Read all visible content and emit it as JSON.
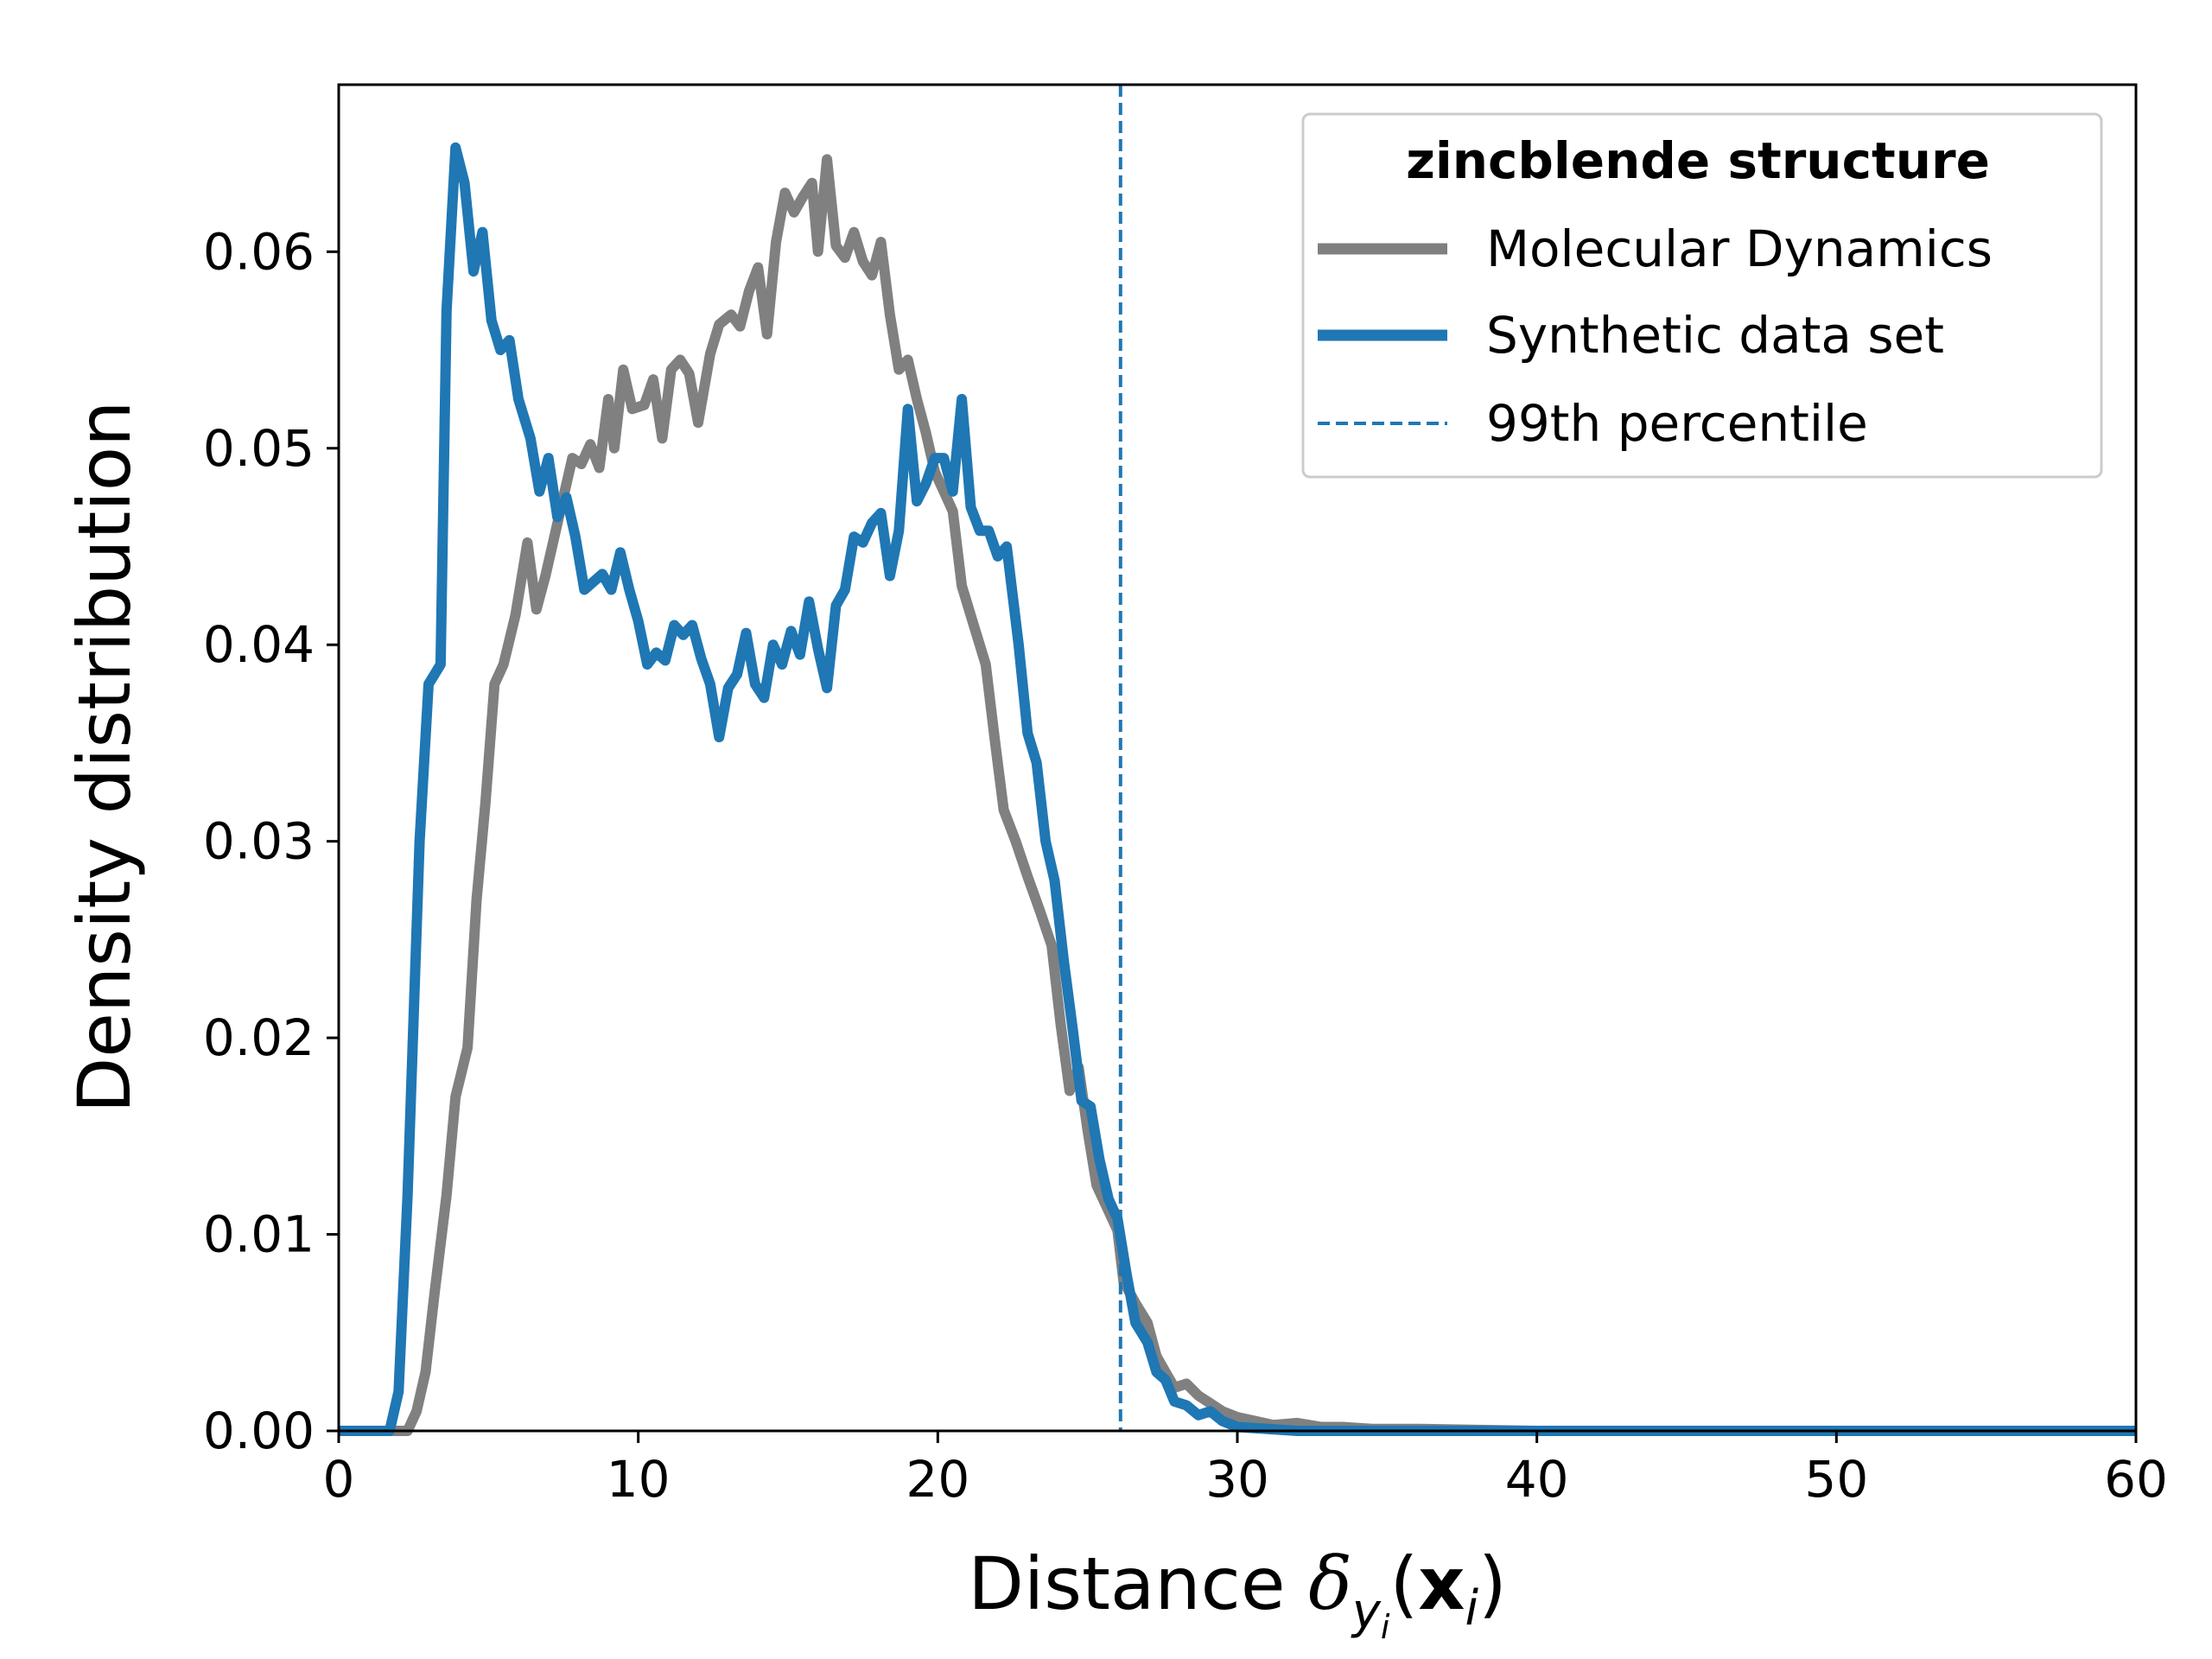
{
  "chart_data": {
    "type": "line",
    "title": "",
    "xlabel": "Distance",
    "xlabel_math": "δ",
    "xlabel_sub": "y",
    "xlabel_subsub": "i",
    "xlabel_arg_open": "(",
    "xlabel_arg_bold": "x",
    "xlabel_arg_sub": "i",
    "xlabel_arg_close": ")",
    "ylabel": "Density distribution",
    "xlim": [
      0,
      60
    ],
    "ylim": [
      0,
      0.0685
    ],
    "xticks": [
      0,
      10,
      20,
      30,
      40,
      50,
      60
    ],
    "yticks": [
      0.0,
      0.01,
      0.02,
      0.03,
      0.04,
      0.05,
      0.06
    ],
    "xtick_labels": [
      "0",
      "10",
      "20",
      "30",
      "40",
      "50",
      "60"
    ],
    "ytick_labels": [
      "0.00",
      "0.01",
      "0.02",
      "0.03",
      "0.04",
      "0.05",
      "0.06"
    ],
    "grid": false,
    "legend": {
      "placement": "top-right",
      "title": "zincblende structure",
      "entries": [
        "Molecular Dynamics",
        "Synthetic data set",
        "99th percentile"
      ]
    },
    "vline": {
      "x": 26.1,
      "name": "99th percentile",
      "color": "#1f77b4",
      "style": "dashed"
    },
    "series": [
      {
        "name": "Molecular Dynamics",
        "color": "#808080",
        "points": [
          [
            0,
            0
          ],
          [
            2.3,
            0
          ],
          [
            2.6,
            0.001
          ],
          [
            2.9,
            0.003
          ],
          [
            3.2,
            0.007
          ],
          [
            3.6,
            0.012
          ],
          [
            3.9,
            0.017
          ],
          [
            4.3,
            0.0195
          ],
          [
            4.6,
            0.027
          ],
          [
            4.9,
            0.032
          ],
          [
            5.2,
            0.038
          ],
          [
            5.5,
            0.039
          ],
          [
            5.9,
            0.0415
          ],
          [
            6.3,
            0.0452
          ],
          [
            6.6,
            0.0418
          ],
          [
            6.9,
            0.0435
          ],
          [
            7.2,
            0.0455
          ],
          [
            7.5,
            0.0475
          ],
          [
            7.8,
            0.0495
          ],
          [
            8.1,
            0.0492
          ],
          [
            8.4,
            0.0502
          ],
          [
            8.7,
            0.049
          ],
          [
            9.0,
            0.0525
          ],
          [
            9.2,
            0.05
          ],
          [
            9.5,
            0.054
          ],
          [
            9.8,
            0.052
          ],
          [
            10.2,
            0.0522
          ],
          [
            10.5,
            0.0535
          ],
          [
            10.8,
            0.0505
          ],
          [
            11.1,
            0.054
          ],
          [
            11.4,
            0.0545
          ],
          [
            11.7,
            0.0538
          ],
          [
            12.0,
            0.0513
          ],
          [
            12.4,
            0.0548
          ],
          [
            12.7,
            0.0563
          ],
          [
            13.1,
            0.0568
          ],
          [
            13.4,
            0.0562
          ],
          [
            13.7,
            0.058
          ],
          [
            14.0,
            0.0592
          ],
          [
            14.3,
            0.0558
          ],
          [
            14.6,
            0.0605
          ],
          [
            14.9,
            0.063
          ],
          [
            15.2,
            0.062
          ],
          [
            15.5,
            0.0628
          ],
          [
            15.8,
            0.0635
          ],
          [
            16.0,
            0.06
          ],
          [
            16.3,
            0.0647
          ],
          [
            16.6,
            0.0603
          ],
          [
            16.9,
            0.0597
          ],
          [
            17.2,
            0.061
          ],
          [
            17.5,
            0.0595
          ],
          [
            17.8,
            0.0588
          ],
          [
            18.1,
            0.0605
          ],
          [
            18.4,
            0.0568
          ],
          [
            18.7,
            0.054
          ],
          [
            19.0,
            0.0545
          ],
          [
            19.3,
            0.0525
          ],
          [
            19.6,
            0.0508
          ],
          [
            19.9,
            0.0488
          ],
          [
            20.2,
            0.0478
          ],
          [
            20.5,
            0.0468
          ],
          [
            20.8,
            0.043
          ],
          [
            21.2,
            0.041
          ],
          [
            21.6,
            0.039
          ],
          [
            21.9,
            0.0352
          ],
          [
            22.2,
            0.0316
          ],
          [
            22.6,
            0.03
          ],
          [
            23.0,
            0.0282
          ],
          [
            23.4,
            0.0265
          ],
          [
            23.8,
            0.0247
          ],
          [
            24.1,
            0.0207
          ],
          [
            24.4,
            0.0173
          ],
          [
            24.7,
            0.0185
          ],
          [
            25.0,
            0.0153
          ],
          [
            25.3,
            0.0125
          ],
          [
            25.7,
            0.0112
          ],
          [
            26.0,
            0.0102
          ],
          [
            26.2,
            0.0076
          ],
          [
            26.6,
            0.0065
          ],
          [
            27.0,
            0.0055
          ],
          [
            27.3,
            0.0038
          ],
          [
            27.6,
            0.003
          ],
          [
            27.9,
            0.0022
          ],
          [
            28.3,
            0.0024
          ],
          [
            28.7,
            0.0018
          ],
          [
            29.1,
            0.0014
          ],
          [
            29.5,
            0.001
          ],
          [
            30.0,
            0.0007
          ],
          [
            30.6,
            0.0005
          ],
          [
            31.2,
            0.0003
          ],
          [
            32.0,
            0.0004
          ],
          [
            32.8,
            0.0002
          ],
          [
            33.5,
            0.0002
          ],
          [
            34.5,
            0.0001
          ],
          [
            36.0,
            0.0001
          ],
          [
            40.0,
            0
          ],
          [
            60,
            0
          ]
        ]
      },
      {
        "name": "Synthetic data set",
        "color": "#1f77b4",
        "points": [
          [
            0,
            0
          ],
          [
            1.7,
            0
          ],
          [
            2.0,
            0.002
          ],
          [
            2.3,
            0.012
          ],
          [
            2.7,
            0.03
          ],
          [
            3.0,
            0.038
          ],
          [
            3.4,
            0.039
          ],
          [
            3.6,
            0.057
          ],
          [
            3.9,
            0.0653
          ],
          [
            4.2,
            0.0635
          ],
          [
            4.5,
            0.059
          ],
          [
            4.8,
            0.061
          ],
          [
            5.1,
            0.0565
          ],
          [
            5.4,
            0.055
          ],
          [
            5.7,
            0.0555
          ],
          [
            6.0,
            0.0525
          ],
          [
            6.4,
            0.0505
          ],
          [
            6.7,
            0.0478
          ],
          [
            7.0,
            0.0495
          ],
          [
            7.3,
            0.0465
          ],
          [
            7.6,
            0.0475
          ],
          [
            7.9,
            0.0455
          ],
          [
            8.2,
            0.0428
          ],
          [
            8.5,
            0.0432
          ],
          [
            8.8,
            0.0436
          ],
          [
            9.1,
            0.0428
          ],
          [
            9.4,
            0.0447
          ],
          [
            9.7,
            0.0428
          ],
          [
            10.0,
            0.0412
          ],
          [
            10.3,
            0.039
          ],
          [
            10.6,
            0.0396
          ],
          [
            10.9,
            0.0392
          ],
          [
            11.2,
            0.041
          ],
          [
            11.5,
            0.0405
          ],
          [
            11.8,
            0.041
          ],
          [
            12.1,
            0.0393
          ],
          [
            12.4,
            0.038
          ],
          [
            12.7,
            0.0353
          ],
          [
            13.0,
            0.0378
          ],
          [
            13.3,
            0.0385
          ],
          [
            13.6,
            0.0406
          ],
          [
            13.9,
            0.038
          ],
          [
            14.2,
            0.0373
          ],
          [
            14.5,
            0.04
          ],
          [
            14.8,
            0.039
          ],
          [
            15.1,
            0.0407
          ],
          [
            15.4,
            0.0395
          ],
          [
            15.7,
            0.0422
          ],
          [
            16.0,
            0.0398
          ],
          [
            16.3,
            0.0378
          ],
          [
            16.6,
            0.042
          ],
          [
            16.9,
            0.0428
          ],
          [
            17.2,
            0.0455
          ],
          [
            17.5,
            0.0452
          ],
          [
            17.8,
            0.0462
          ],
          [
            18.1,
            0.0467
          ],
          [
            18.4,
            0.0435
          ],
          [
            18.7,
            0.0458
          ],
          [
            19.0,
            0.052
          ],
          [
            19.3,
            0.0473
          ],
          [
            19.6,
            0.0482
          ],
          [
            19.9,
            0.0495
          ],
          [
            20.2,
            0.0495
          ],
          [
            20.5,
            0.0478
          ],
          [
            20.8,
            0.0525
          ],
          [
            21.1,
            0.047
          ],
          [
            21.4,
            0.0458
          ],
          [
            21.7,
            0.0458
          ],
          [
            22.0,
            0.0445
          ],
          [
            22.3,
            0.045
          ],
          [
            22.7,
            0.04
          ],
          [
            23.0,
            0.0355
          ],
          [
            23.3,
            0.034
          ],
          [
            23.6,
            0.03
          ],
          [
            23.9,
            0.028
          ],
          [
            24.2,
            0.024
          ],
          [
            24.5,
            0.0205
          ],
          [
            24.8,
            0.0168
          ],
          [
            25.1,
            0.0165
          ],
          [
            25.4,
            0.0138
          ],
          [
            25.7,
            0.0118
          ],
          [
            26.0,
            0.0108
          ],
          [
            26.3,
            0.008
          ],
          [
            26.6,
            0.0055
          ],
          [
            27.0,
            0.0045
          ],
          [
            27.3,
            0.003
          ],
          [
            27.6,
            0.0026
          ],
          [
            27.9,
            0.0015
          ],
          [
            28.3,
            0.0013
          ],
          [
            28.7,
            0.0008
          ],
          [
            29.1,
            0.001
          ],
          [
            29.5,
            0.0005
          ],
          [
            30.0,
            0.0002
          ],
          [
            31.0,
            0.0001
          ],
          [
            32.0,
            0
          ],
          [
            60,
            0
          ]
        ]
      }
    ]
  }
}
